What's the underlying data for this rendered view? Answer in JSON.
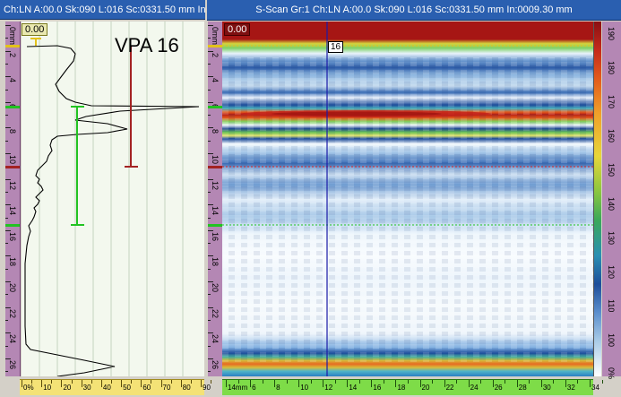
{
  "window": {
    "ascan_title": "Ch:LN A:00.0 Sk:090 L:016 Sc:0331.50 mm In:",
    "sscan_title": "S-Scan Gr:1 Ch:LN A:00.0 Sk:090 L:016 Sc:0331.50 mm In:0009.30 mm"
  },
  "ascan": {
    "label": "VPA 16",
    "gate_value": "0.00",
    "hruler_labels": [
      "0%",
      "10",
      "20",
      "30",
      "40",
      "50",
      "60",
      "70",
      "80",
      "90"
    ],
    "depth_labels": [
      "0mm",
      "2",
      "4",
      "6",
      "8",
      "10",
      "12",
      "14",
      "16",
      "18",
      "20",
      "22",
      "24",
      "26"
    ]
  },
  "sscan": {
    "gate_value": "0.00",
    "cursor_label": "16",
    "depth_labels": [
      "0mm",
      "2",
      "4",
      "6",
      "8",
      "10",
      "12",
      "14",
      "16",
      "18",
      "20",
      "22",
      "24",
      "26"
    ],
    "hruler_labels": [
      "14mm",
      "6",
      "8",
      "10",
      "12",
      "14",
      "16",
      "18",
      "20",
      "22",
      "24",
      "26",
      "28",
      "30",
      "32",
      "34"
    ]
  },
  "colorbar": {
    "labels": [
      "190",
      "180",
      "170",
      "160",
      "150",
      "140",
      "130",
      "120",
      "110",
      "100",
      "0%"
    ]
  },
  "colors": {
    "title_bar": "#2a5fb0",
    "ruler_purple": "#b487b4",
    "ruler_green": "#7edc48",
    "gate_red": "#a32222",
    "gate_green": "#22c322",
    "gate_yellow": "#e3c21a",
    "cursor": "#1a1aa8"
  }
}
